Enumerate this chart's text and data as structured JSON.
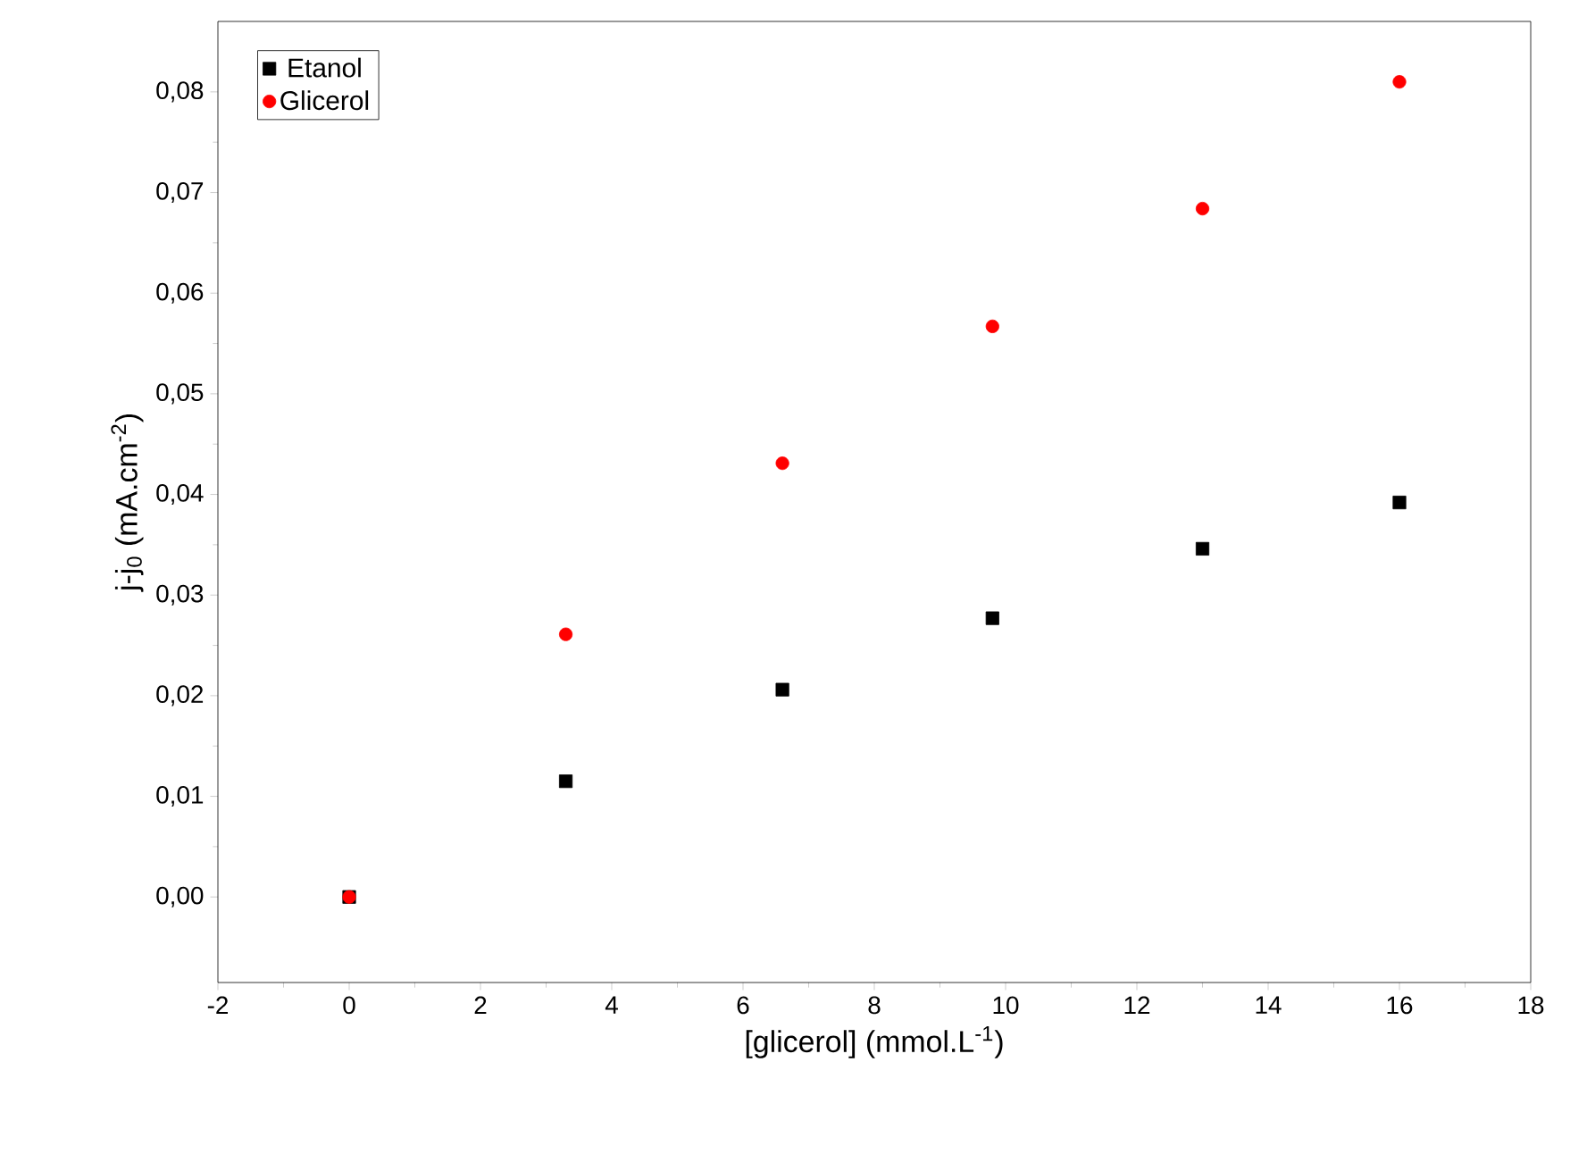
{
  "chart_data": {
    "type": "scatter",
    "xlabel": "[glicerol] (mmol.L$^{-1}$)",
    "ylabel": "j-j$_{0}$ (mA.cm$^{-2}$)",
    "xlim": [
      -2,
      18
    ],
    "ylim": [
      -0.0085,
      0.087
    ],
    "xticks": [
      -2,
      0,
      2,
      4,
      6,
      8,
      10,
      12,
      14,
      16,
      18
    ],
    "yticks": [
      {
        "value": 0,
        "label": "0,00"
      },
      {
        "value": 0.01,
        "label": "0,01"
      },
      {
        "value": 0.02,
        "label": "0,02"
      },
      {
        "value": 0.03,
        "label": "0,03"
      },
      {
        "value": 0.04,
        "label": "0,04"
      },
      {
        "value": 0.05,
        "label": "0,05"
      },
      {
        "value": 0.06,
        "label": "0,06"
      },
      {
        "value": 0.07,
        "label": "0,07"
      },
      {
        "value": 0.08,
        "label": "0,08"
      }
    ],
    "x": [
      0,
      3.3,
      6.6,
      9.8,
      13,
      16
    ],
    "series": [
      {
        "name": "Etanol",
        "color": "#000000",
        "marker": "square",
        "values": [
          0,
          0.0115,
          0.0206,
          0.0277,
          0.0346,
          0.0392
        ]
      },
      {
        "name": "Glicerol",
        "color": "#ff0000",
        "marker": "circle",
        "values": [
          0,
          0.0261,
          0.0431,
          0.0567,
          0.0684,
          0.081
        ]
      }
    ],
    "legend": "top left",
    "grid": false
  }
}
